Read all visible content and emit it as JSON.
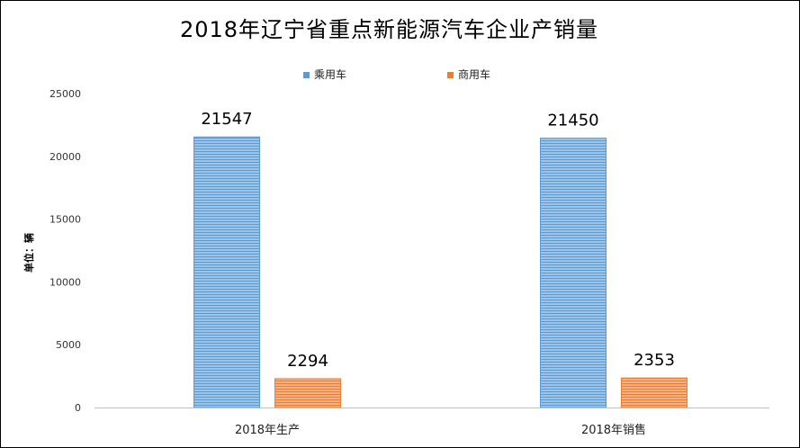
{
  "chart_data": {
    "type": "bar",
    "title": "2018年辽宁省重点新能源汽车企业产销量",
    "ylabel": "单位：辆",
    "xlabel": "",
    "categories": [
      "2018年生产",
      "2018年销售"
    ],
    "series": [
      {
        "name": "乘用车",
        "values": [
          21547,
          21450
        ],
        "color": "#5B9BD5"
      },
      {
        "name": "商用车",
        "values": [
          2294,
          2353
        ],
        "color": "#ED7D31"
      }
    ],
    "ylim": [
      0,
      25000
    ],
    "yticks": [
      0,
      5000,
      10000,
      15000,
      20000,
      25000
    ],
    "grid": false,
    "legend_position": "top-center",
    "data_labels": true
  }
}
